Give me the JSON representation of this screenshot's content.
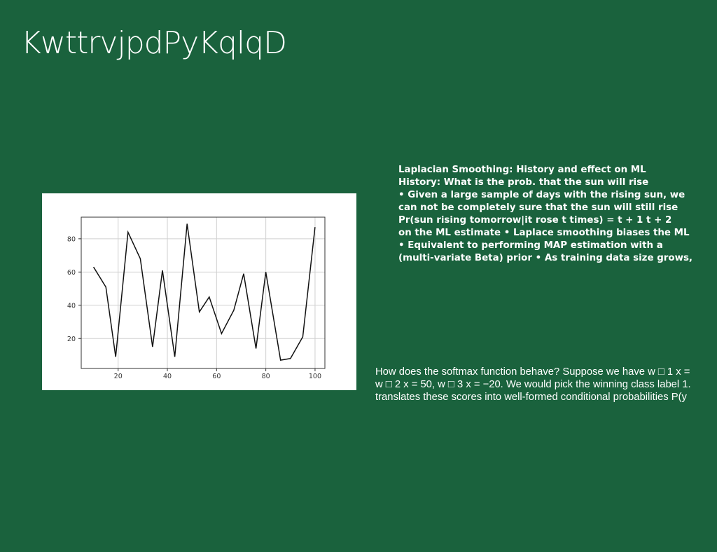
{
  "slide": {
    "title": "KwttrvjpdPyKqlqD"
  },
  "bold_block": {
    "lines": [
      "Laplacian Smoothing: History and effect on ML",
      "History: What is the prob. that the sun will rise",
      "• Given a large sample of days with the rising sun, we",
      "can not be completely sure that the sun will still rise",
      "Pr(sun rising tomorrow|it rose t times) = t + 1 t + 2",
      "on the ML estimate • Laplace smoothing biases the ML",
      "• Equivalent to performing MAP estimation with a",
      "(multi-variate Beta) prior • As training data size grows,"
    ]
  },
  "plain_block": {
    "lines": [
      "How does the softmax function behave? Suppose we have w □ 1 x =",
      "w □ 2 x = 50, w □ 3 x = −20. We would pick the winning class label 1.",
      "translates these scores into well-formed conditional probabilities P(y"
    ]
  },
  "chart_data": {
    "type": "line",
    "x": [
      10,
      15,
      19,
      24,
      29,
      34,
      38,
      43,
      48,
      53,
      57,
      62,
      67,
      71,
      76,
      80,
      86,
      90,
      95,
      100
    ],
    "y": [
      63,
      51,
      9,
      84,
      68,
      15,
      61,
      9,
      89,
      36,
      45,
      23,
      37,
      59,
      14,
      60,
      7,
      8,
      21,
      87
    ],
    "xlim": [
      5,
      104
    ],
    "ylim": [
      2,
      93
    ],
    "xticks": [
      20,
      40,
      60,
      80,
      100
    ],
    "yticks": [
      20,
      40,
      60,
      80
    ],
    "grid": true,
    "line_color": "#111111",
    "title": "",
    "xlabel": "",
    "ylabel": ""
  }
}
